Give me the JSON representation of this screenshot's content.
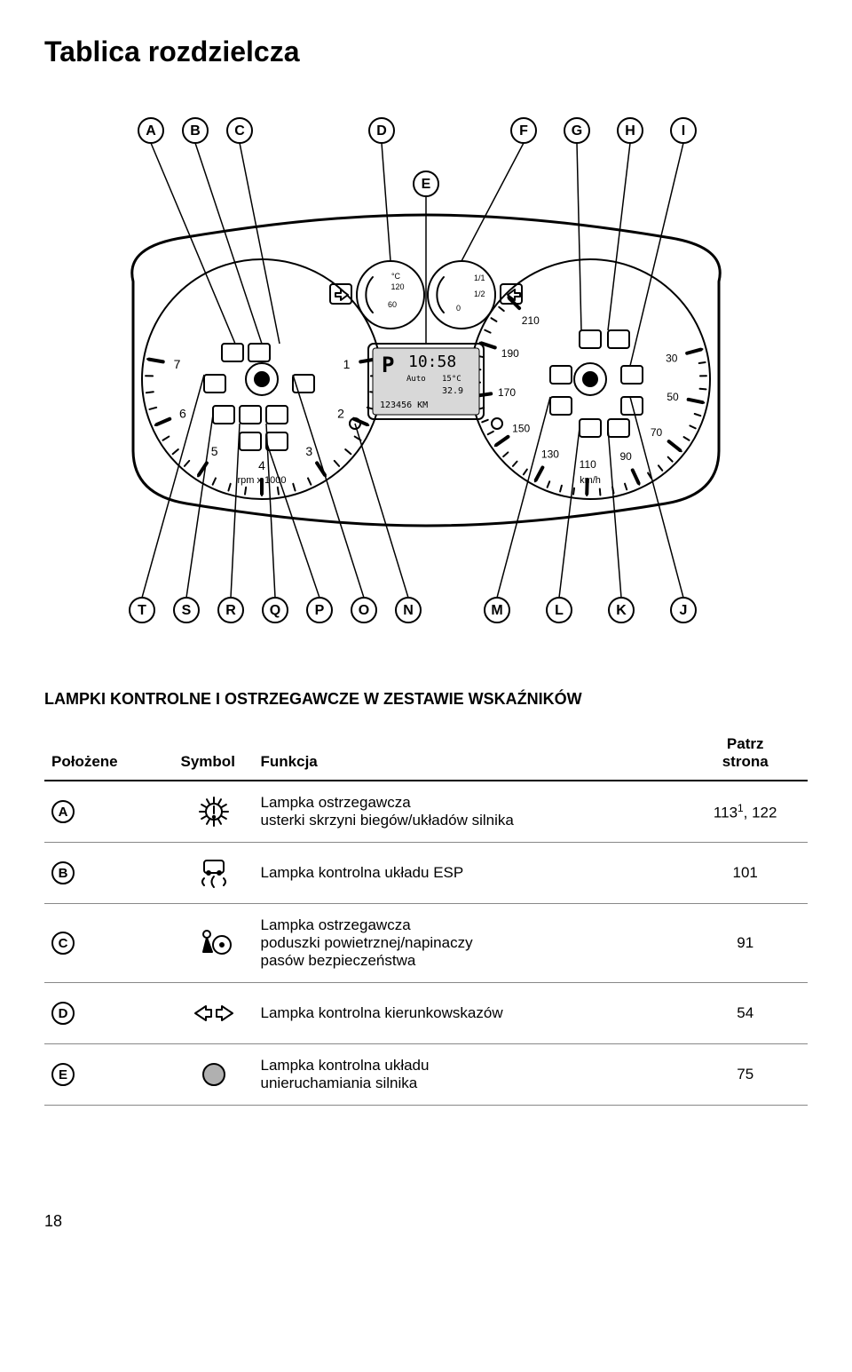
{
  "title": "Tablica rozdzielcza",
  "section_heading": "LAMPKI KONTROLNE I OSTRZEGAWCZE W ZESTAWIE WSKAŹNIKÓW",
  "page_number": "18",
  "diagram": {
    "callouts_top": [
      "A",
      "B",
      "C",
      "D",
      "E",
      "F",
      "G",
      "H",
      "I"
    ],
    "callouts_bottom": [
      "T",
      "S",
      "R",
      "Q",
      "P",
      "O",
      "N",
      "M",
      "L",
      "K",
      "J"
    ],
    "tacho": {
      "ticks": [
        "1",
        "2",
        "3",
        "4",
        "5",
        "6",
        "7"
      ],
      "unit": "rpm x 1000"
    },
    "speedo": {
      "ticks": [
        "30",
        "50",
        "70",
        "90",
        "110",
        "130",
        "150",
        "170",
        "190",
        "210"
      ],
      "unit": "km/h"
    },
    "temp_gauge": {
      "label_top": "°C",
      "label_hi": "120",
      "label_lo": "60"
    },
    "fuel_gauge": {
      "label_hi": "1/1",
      "label_mid": "1/2",
      "label_lo": "0"
    },
    "lcd": {
      "gear": "P",
      "time": "10:58",
      "mode": "Auto",
      "temp": "15°C",
      "value": "32.9",
      "odo": "123456 KM"
    }
  },
  "table": {
    "headers": {
      "pos": "Położene",
      "sym": "Symbol",
      "func": "Funkcja",
      "page": "Patrz\nstrona"
    },
    "rows": [
      {
        "pos": "A",
        "icon": "warning-burst",
        "func": "Lampka ostrzegawcza\nusterki skrzyni biegów/układów silnika",
        "page_html": "113<sup>1</sup>, 122"
      },
      {
        "pos": "B",
        "icon": "esp",
        "func": "Lampka kontrolna układu ESP",
        "page_html": "101"
      },
      {
        "pos": "C",
        "icon": "airbag",
        "func": "Lampka ostrzegawcza\npoduszki powietrznej/napinaczy\npasów bezpieczeństwa",
        "page_html": "91"
      },
      {
        "pos": "D",
        "icon": "turn-signals",
        "func": "Lampka kontrolna kierunkowskazów",
        "page_html": "54"
      },
      {
        "pos": "E",
        "icon": "immobilizer",
        "func": "Lampka kontrolna układu\nunieruchamiania silnika",
        "page_html": "75"
      }
    ]
  },
  "style": {
    "stroke": "#000000",
    "fill_bg": "#ffffff",
    "callout_r": 14,
    "callout_fontsize": 16,
    "diagram_width": 820,
    "diagram_height": 600
  }
}
